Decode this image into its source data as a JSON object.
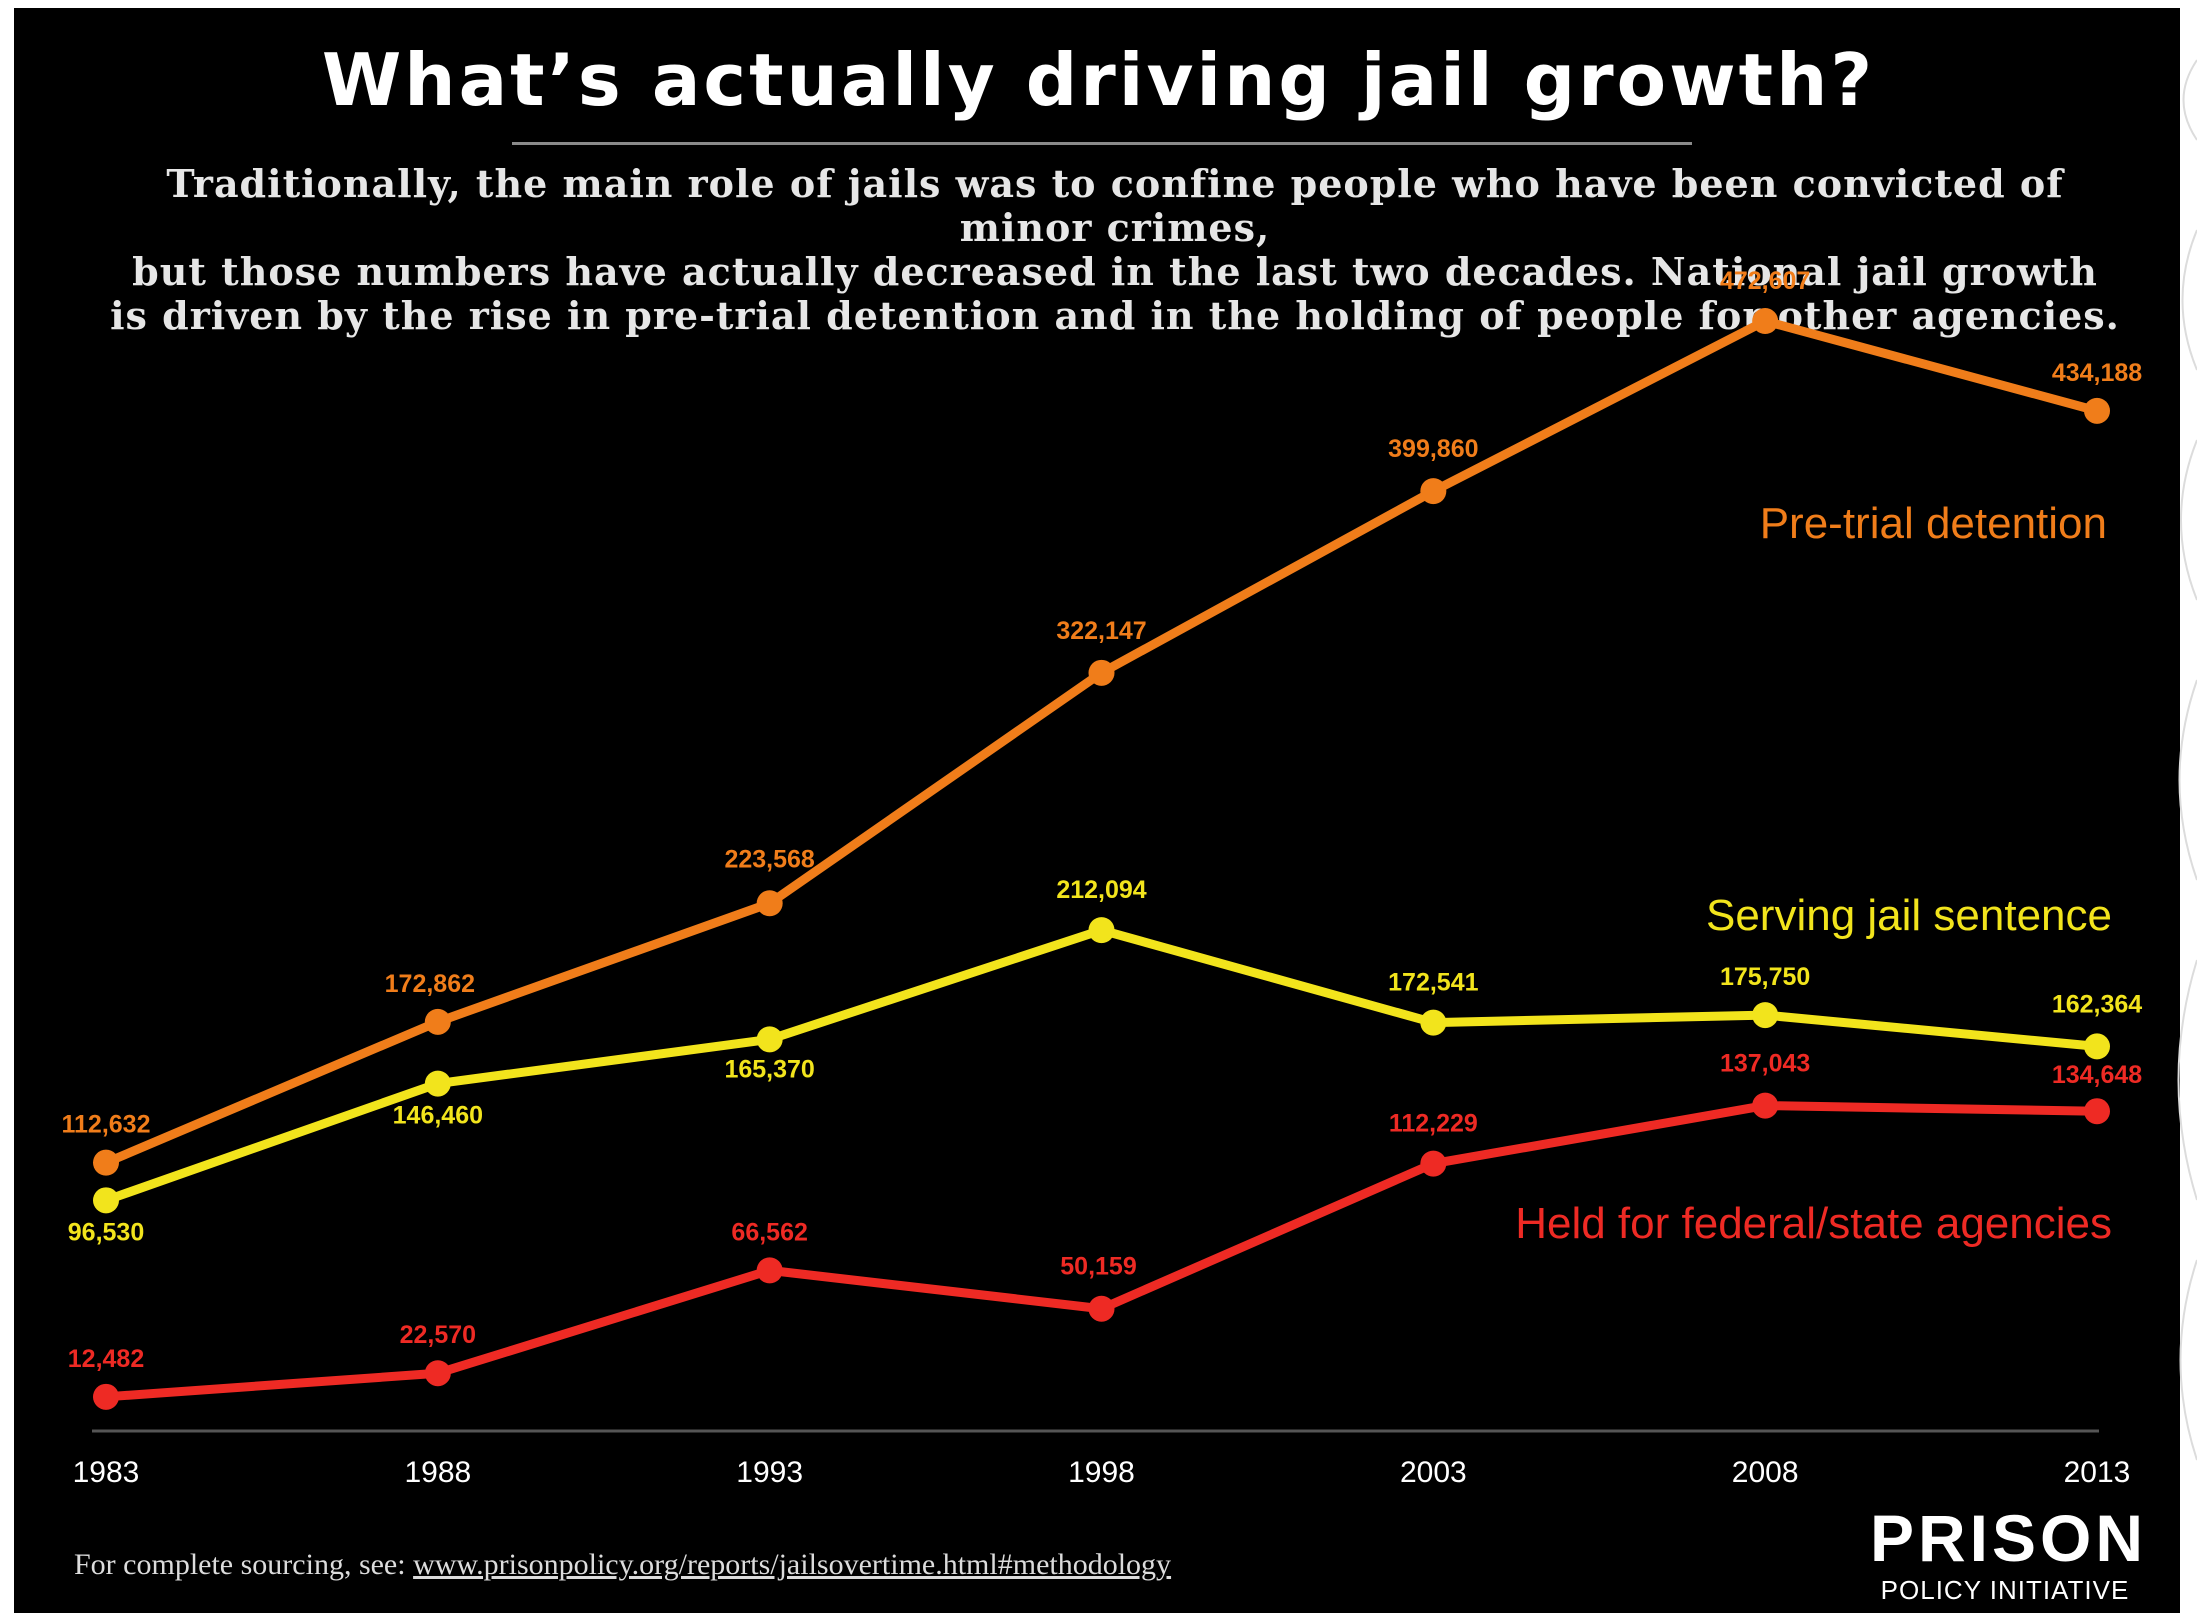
{
  "title": "What’s actually driving jail growth?",
  "subtitle_lines": [
    "Traditionally, the main role of jails was to confine people who have been convicted of minor crimes,",
    "but those numbers have actually decreased in the last two decades. National jail growth",
    "is driven by the rise in pre-trial detention and in the holding of people for other agencies."
  ],
  "footer": {
    "prefix": "For complete sourcing, see:",
    "link": "www.prisonpolicy.org/reports/jailsovertime.html#methodology"
  },
  "logo": {
    "line1": "PRISON",
    "line2": "POLICY INITIATIVE"
  },
  "chart_data": {
    "type": "line",
    "categories": [
      "1983",
      "1988",
      "1993",
      "1998",
      "2003",
      "2008",
      "2013"
    ],
    "ylim": [
      0,
      500000
    ],
    "grid": false,
    "series": [
      {
        "name": "Pre-trial detention",
        "color": "#f07d1a",
        "values": [
          112632,
          172862,
          223568,
          322147,
          399860,
          472607,
          434188
        ],
        "labels": [
          "112,632",
          "172,862",
          "223,568",
          "322,147",
          "399,860",
          "472,607",
          "434,188"
        ]
      },
      {
        "name": "Serving jail sentence",
        "color": "#f2e41c",
        "values": [
          96530,
          146460,
          165370,
          212094,
          172541,
          175750,
          162364
        ],
        "labels": [
          "96,530",
          "146,460",
          "165,370",
          "212,094",
          "172,541",
          "175,750",
          "162,364"
        ]
      },
      {
        "name": "Held for federal/state agencies",
        "color": "#ee2a24",
        "values": [
          12482,
          22570,
          66562,
          50159,
          112229,
          137043,
          134648
        ],
        "labels": [
          "12,482",
          "22,570",
          "66,562",
          "50,159",
          "112,229",
          "137,043",
          "134,648"
        ]
      }
    ]
  }
}
